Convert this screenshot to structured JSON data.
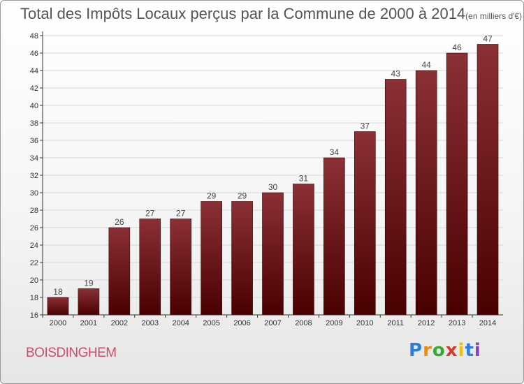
{
  "title": "Total des Impôts Locaux perçus par la Commune de 2000 à 2014",
  "unit": "(en milliers d'€)",
  "commune": "BOISDINGHEM",
  "brand": {
    "letters": [
      "P",
      "r",
      "o",
      "x",
      "i",
      "t",
      "i"
    ],
    "colors": [
      "#2f7fd6",
      "#f08a00",
      "#38a832",
      "#d63a2f",
      "#f0c000",
      "#2f7fd6",
      "#8a3fbf"
    ]
  },
  "colors": {
    "bar_top": "#8a3036",
    "bar_bottom": "#4a0000",
    "axis": "#333333",
    "grid": "#d6d6d6"
  },
  "chart_data": {
    "type": "bar",
    "title": "Total des Impôts Locaux perçus par la Commune de 2000 à 2014",
    "xlabel": "",
    "ylabel": "",
    "categories": [
      "2000",
      "2001",
      "2002",
      "2003",
      "2004",
      "2005",
      "2006",
      "2007",
      "2008",
      "2009",
      "2010",
      "2011",
      "2012",
      "2013",
      "2014"
    ],
    "values": [
      18,
      19,
      26,
      27,
      27,
      29,
      29,
      30,
      31,
      34,
      37,
      43,
      44,
      46,
      47
    ],
    "ylim": [
      16,
      48
    ],
    "yticks": [
      16,
      18,
      20,
      22,
      24,
      26,
      28,
      30,
      32,
      34,
      36,
      38,
      40,
      42,
      44,
      46,
      48
    ],
    "grid": true
  }
}
